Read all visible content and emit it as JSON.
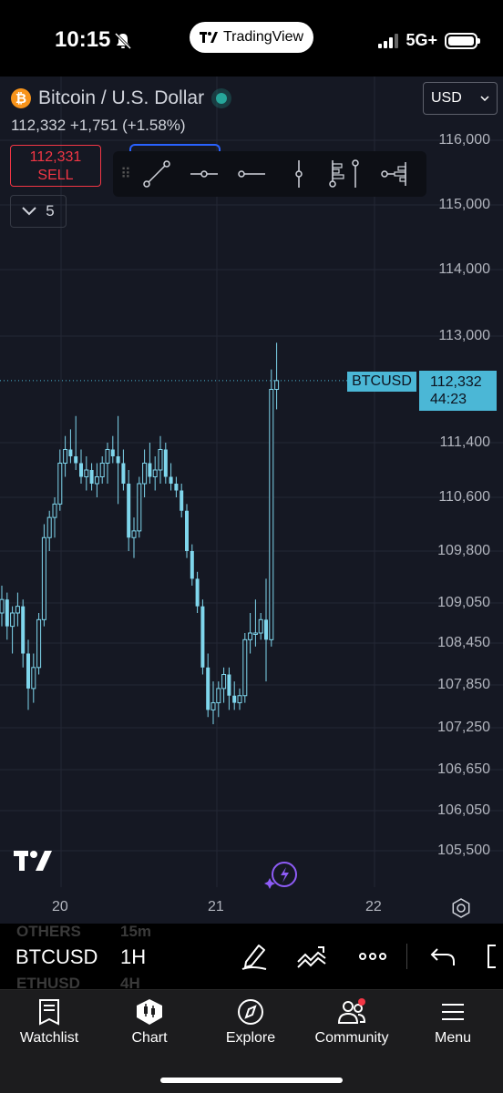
{
  "status": {
    "time": "10:15",
    "brand": "TradingView",
    "network": "5G+"
  },
  "header": {
    "symbol_title": "Bitcoin / U.S. Dollar",
    "price_line": "112,332 +1,751 (+1.58%)",
    "sell_price": "112,331",
    "sell_label": "SELL",
    "collapse_count": "5",
    "currency": "USD"
  },
  "price_label": {
    "symbol": "BTCUSD",
    "price": "112,332",
    "countdown": "44:23"
  },
  "chart_data": {
    "type": "candlestick",
    "y_ticks": [
      "116,000",
      "115,000",
      "114,000",
      "113,000",
      "111,400",
      "110,600",
      "109,800",
      "109,050",
      "108,450",
      "107,850",
      "107,250",
      "106,650",
      "106,050",
      "105,500"
    ],
    "x_ticks": [
      "20",
      "21",
      "22"
    ],
    "last_price": 112332,
    "candles": [
      {
        "o": 108900,
        "h": 109300,
        "l": 108700,
        "c": 109100
      },
      {
        "o": 109100,
        "h": 109200,
        "l": 108500,
        "c": 108700
      },
      {
        "o": 108700,
        "h": 109000,
        "l": 108300,
        "c": 108900
      },
      {
        "o": 108900,
        "h": 109200,
        "l": 108700,
        "c": 109000
      },
      {
        "o": 109000,
        "h": 109100,
        "l": 108100,
        "c": 108300
      },
      {
        "o": 108300,
        "h": 108500,
        "l": 107500,
        "c": 107800
      },
      {
        "o": 107800,
        "h": 108300,
        "l": 107600,
        "c": 108100
      },
      {
        "o": 108100,
        "h": 108900,
        "l": 108000,
        "c": 108800
      },
      {
        "o": 108800,
        "h": 110200,
        "l": 108700,
        "c": 110000
      },
      {
        "o": 110000,
        "h": 110400,
        "l": 109800,
        "c": 110300
      },
      {
        "o": 110300,
        "h": 110600,
        "l": 110000,
        "c": 110500
      },
      {
        "o": 110500,
        "h": 111300,
        "l": 110400,
        "c": 111100
      },
      {
        "o": 111100,
        "h": 111500,
        "l": 110900,
        "c": 111300
      },
      {
        "o": 111300,
        "h": 111600,
        "l": 111100,
        "c": 111200
      },
      {
        "o": 111200,
        "h": 111800,
        "l": 111000,
        "c": 111100
      },
      {
        "o": 111100,
        "h": 111300,
        "l": 110800,
        "c": 110900
      },
      {
        "o": 110900,
        "h": 111200,
        "l": 110700,
        "c": 111000
      },
      {
        "o": 111000,
        "h": 111100,
        "l": 110700,
        "c": 110800
      },
      {
        "o": 110800,
        "h": 111100,
        "l": 110600,
        "c": 110900
      },
      {
        "o": 110900,
        "h": 111200,
        "l": 110800,
        "c": 111100
      },
      {
        "o": 111100,
        "h": 111400,
        "l": 110800,
        "c": 111300
      },
      {
        "o": 111300,
        "h": 111500,
        "l": 111100,
        "c": 111200
      },
      {
        "o": 111200,
        "h": 111800,
        "l": 110500,
        "c": 111100
      },
      {
        "o": 111100,
        "h": 111300,
        "l": 110700,
        "c": 110800
      },
      {
        "o": 110800,
        "h": 111000,
        "l": 109800,
        "c": 110000
      },
      {
        "o": 110000,
        "h": 110300,
        "l": 109700,
        "c": 110100
      },
      {
        "o": 110100,
        "h": 110900,
        "l": 110000,
        "c": 110800
      },
      {
        "o": 110800,
        "h": 111300,
        "l": 110600,
        "c": 111100
      },
      {
        "o": 111100,
        "h": 111400,
        "l": 110800,
        "c": 110900
      },
      {
        "o": 110900,
        "h": 111200,
        "l": 110700,
        "c": 111000
      },
      {
        "o": 111000,
        "h": 111500,
        "l": 110800,
        "c": 111300
      },
      {
        "o": 111300,
        "h": 111400,
        "l": 110800,
        "c": 110900
      },
      {
        "o": 110900,
        "h": 111100,
        "l": 110700,
        "c": 110800
      },
      {
        "o": 110800,
        "h": 110900,
        "l": 110600,
        "c": 110700
      },
      {
        "o": 110700,
        "h": 110800,
        "l": 110300,
        "c": 110400
      },
      {
        "o": 110400,
        "h": 110500,
        "l": 109700,
        "c": 109800
      },
      {
        "o": 109800,
        "h": 109900,
        "l": 109300,
        "c": 109400
      },
      {
        "o": 109400,
        "h": 109500,
        "l": 108900,
        "c": 109000
      },
      {
        "o": 109000,
        "h": 109100,
        "l": 108000,
        "c": 108100
      },
      {
        "o": 108100,
        "h": 108300,
        "l": 107400,
        "c": 107500
      },
      {
        "o": 107500,
        "h": 107900,
        "l": 107300,
        "c": 107600
      },
      {
        "o": 107600,
        "h": 107900,
        "l": 107400,
        "c": 107800
      },
      {
        "o": 107800,
        "h": 108100,
        "l": 107600,
        "c": 108000
      },
      {
        "o": 108000,
        "h": 108100,
        "l": 107500,
        "c": 107700
      },
      {
        "o": 107700,
        "h": 107900,
        "l": 107500,
        "c": 107600
      },
      {
        "o": 107600,
        "h": 107800,
        "l": 107500,
        "c": 107700
      },
      {
        "o": 107700,
        "h": 108600,
        "l": 107600,
        "c": 108500
      },
      {
        "o": 108500,
        "h": 108900,
        "l": 108300,
        "c": 108600
      },
      {
        "o": 108600,
        "h": 109100,
        "l": 108400,
        "c": 108600
      },
      {
        "o": 108600,
        "h": 108900,
        "l": 108500,
        "c": 108800
      },
      {
        "o": 108800,
        "h": 109400,
        "l": 107900,
        "c": 108500
      },
      {
        "o": 108500,
        "h": 112500,
        "l": 108400,
        "c": 112200
      },
      {
        "o": 112200,
        "h": 112900,
        "l": 111900,
        "c": 112332
      }
    ]
  },
  "symbol_bar": {
    "symbol": "BTCUSD",
    "interval": "1H",
    "ghost_prev_symbol": "OTHERS",
    "ghost_prev_interval": "15m",
    "ghost_next_symbol": "ETHUSD",
    "ghost_next_interval": "4H"
  },
  "tabs": [
    {
      "label": "Watchlist",
      "icon": "watchlist-icon"
    },
    {
      "label": "Chart",
      "icon": "chart-icon"
    },
    {
      "label": "Explore",
      "icon": "compass-icon"
    },
    {
      "label": "Community",
      "icon": "community-icon"
    },
    {
      "label": "Menu",
      "icon": "menu-icon"
    }
  ],
  "colors": {
    "chart_bg": "#151823",
    "candle": "#7fd6ec",
    "label_bg": "#4bb7d6",
    "sell": "#f23645"
  }
}
